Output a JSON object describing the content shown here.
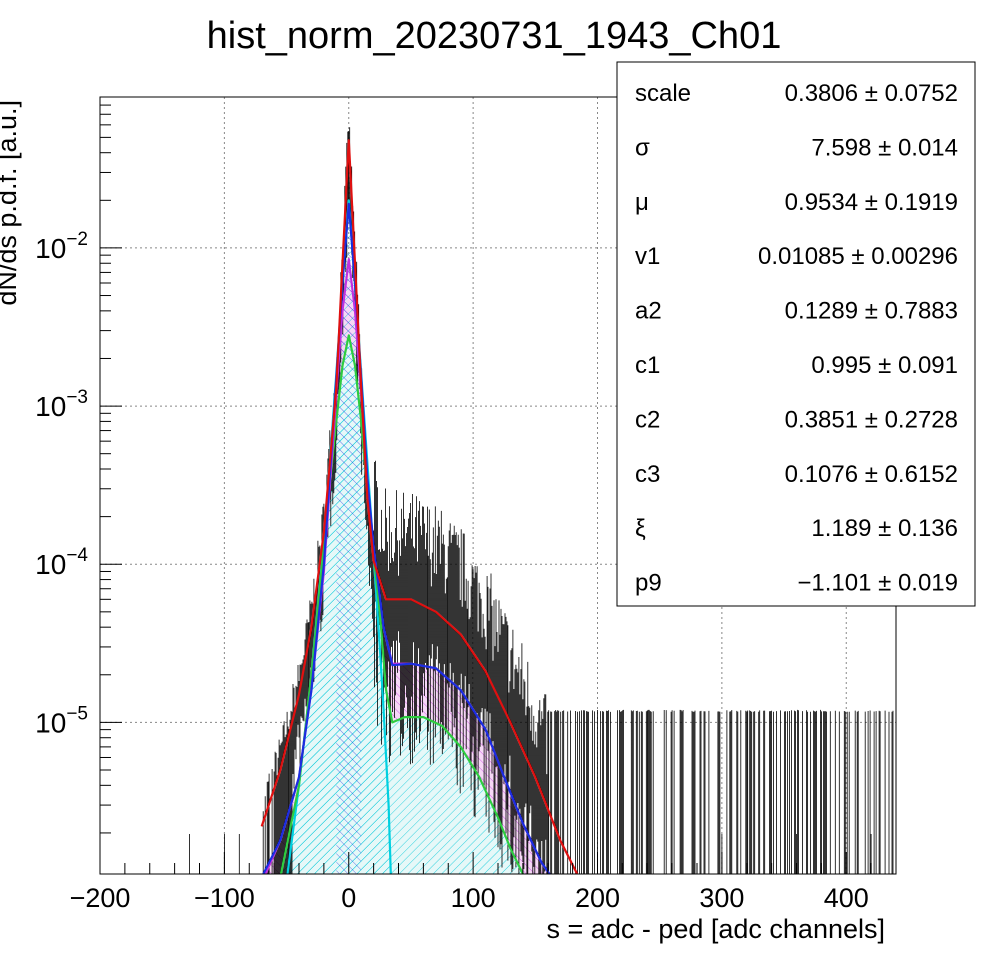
{
  "chart_data": {
    "type": "line",
    "title": "hist_norm_20230731_1943_Ch01",
    "xlabel": "s = adc - ped [adc channels]",
    "ylabel": "dN/ds p.d.f. [a.u.]",
    "x_scale": "linear",
    "y_scale": "log",
    "xlim": [
      -200,
      440
    ],
    "ylim": [
      1.1e-06,
      0.09
    ],
    "grid": true,
    "x_ticks": [
      "−200",
      "−100",
      "0",
      "100",
      "200",
      "300",
      "400"
    ],
    "x_tick_values": [
      -200,
      -100,
      0,
      100,
      200,
      300,
      400
    ],
    "y_ticks": [
      {
        "value": 0.01,
        "base": "10",
        "exp": "−2"
      },
      {
        "value": 0.001,
        "base": "10",
        "exp": "−3"
      },
      {
        "value": 0.0001,
        "base": "10",
        "exp": "−4"
      },
      {
        "value": 1e-05,
        "base": "10",
        "exp": "−5"
      }
    ],
    "series": [
      {
        "color": "#e01010",
        "points": [
          [
            -70,
            2.2e-06
          ],
          [
            -55,
            5e-06
          ],
          [
            -40,
            1.5e-05
          ],
          [
            -30,
            4e-05
          ],
          [
            -20,
            0.00016
          ],
          [
            -10,
            0.0013
          ],
          [
            -5,
            0.008
          ],
          [
            0,
            0.048
          ],
          [
            5,
            0.008
          ],
          [
            10,
            0.0013
          ],
          [
            15,
            0.00026
          ],
          [
            20,
            0.000105
          ],
          [
            30,
            6e-05
          ],
          [
            50,
            6e-05
          ],
          [
            70,
            5e-05
          ],
          [
            90,
            3.6e-05
          ],
          [
            110,
            2.1e-05
          ],
          [
            130,
            1e-05
          ],
          [
            150,
            4.5e-06
          ],
          [
            170,
            1.8e-06
          ],
          [
            185,
            1.05e-06
          ]
        ]
      },
      {
        "color": "#1a2ee0",
        "points": [
          [
            -70,
            1.05e-06
          ],
          [
            -55,
            1.8e-06
          ],
          [
            -40,
            4.5e-06
          ],
          [
            -30,
            1.6e-05
          ],
          [
            -20,
            0.0001
          ],
          [
            -10,
            0.0015
          ],
          [
            -5,
            0.006
          ],
          [
            0,
            0.019
          ],
          [
            5,
            0.006
          ],
          [
            10,
            0.0015
          ],
          [
            15,
            0.00035
          ],
          [
            20,
            0.00013
          ],
          [
            28,
            4e-05
          ],
          [
            35,
            2.3e-05
          ],
          [
            50,
            2.35e-05
          ],
          [
            70,
            2.2e-05
          ],
          [
            90,
            1.6e-05
          ],
          [
            110,
            9e-06
          ],
          [
            125,
            4.5e-06
          ],
          [
            140,
            2.3e-06
          ],
          [
            155,
            1.3e-06
          ],
          [
            165,
            1e-06
          ]
        ]
      },
      {
        "color": "#00d0e0",
        "points": [
          [
            -50,
            1e-06
          ],
          [
            -40,
            4e-06
          ],
          [
            -30,
            2e-05
          ],
          [
            -20,
            0.00014
          ],
          [
            -10,
            0.0016
          ],
          [
            -5,
            0.006
          ],
          [
            0,
            0.02
          ],
          [
            5,
            0.006
          ],
          [
            10,
            0.0016
          ],
          [
            18,
            0.0002
          ],
          [
            25,
            3e-05
          ],
          [
            28,
            1.2e-05
          ],
          [
            32,
            3e-06
          ],
          [
            34,
            1e-06
          ]
        ]
      },
      {
        "color": "#c030e0",
        "points": [
          [
            -68,
            1.05e-06
          ],
          [
            -55,
            1.8e-06
          ],
          [
            -40,
            4.5e-06
          ],
          [
            -30,
            1.6e-05
          ],
          [
            -20,
            9e-05
          ],
          [
            -10,
            0.0012
          ],
          [
            -5,
            0.004
          ],
          [
            0,
            0.0085
          ],
          [
            5,
            0.004
          ],
          [
            10,
            0.0012
          ],
          [
            15,
            0.00032
          ],
          [
            20,
            0.00013
          ],
          [
            28,
            4e-05
          ],
          [
            35,
            2.35e-05
          ],
          [
            50,
            2.35e-05
          ],
          [
            70,
            2.2e-05
          ],
          [
            90,
            1.6e-05
          ],
          [
            110,
            9e-06
          ],
          [
            125,
            4.5e-06
          ],
          [
            140,
            2.3e-06
          ],
          [
            155,
            1.3e-06
          ],
          [
            165,
            1e-06
          ]
        ]
      },
      {
        "color": "#2ecc40",
        "points": [
          [
            -55,
            1.05e-06
          ],
          [
            -40,
            4e-06
          ],
          [
            -30,
            2e-05
          ],
          [
            -20,
            0.00013
          ],
          [
            -10,
            0.0008
          ],
          [
            -5,
            0.0018
          ],
          [
            0,
            0.0028
          ],
          [
            5,
            0.0018
          ],
          [
            10,
            0.0008
          ],
          [
            18,
            0.00016
          ],
          [
            25,
            5e-05
          ],
          [
            30,
            1.6e-05
          ],
          [
            35,
            1e-05
          ],
          [
            45,
            1.08e-05
          ],
          [
            60,
            1.08e-05
          ],
          [
            75,
            9.5e-06
          ],
          [
            90,
            7e-06
          ],
          [
            105,
            4.5e-06
          ],
          [
            120,
            2.5e-06
          ],
          [
            130,
            1.6e-06
          ],
          [
            140,
            1.1e-06
          ],
          [
            145,
            1e-06
          ]
        ]
      }
    ],
    "stats": [
      {
        "name": "scale",
        "value": "0.3806 ± 0.0752"
      },
      {
        "name": "σ",
        "value": "7.598 ± 0.014"
      },
      {
        "name": "μ",
        "value": "0.9534 ± 0.1919"
      },
      {
        "name": "v1",
        "value": "0.01085 ± 0.00296"
      },
      {
        "name": "a2",
        "value": "0.1289 ± 0.7883"
      },
      {
        "name": "c1",
        "value": "0.995 ± 0.091"
      },
      {
        "name": "c2",
        "value": "0.3851 ± 0.2728"
      },
      {
        "name": "c3",
        "value": "0.1076 ± 0.6152"
      },
      {
        "name": "ξ",
        "value": "1.189 ± 0.136"
      },
      {
        "name": "p9",
        "value": "−1.101 ± 0.019"
      }
    ]
  }
}
